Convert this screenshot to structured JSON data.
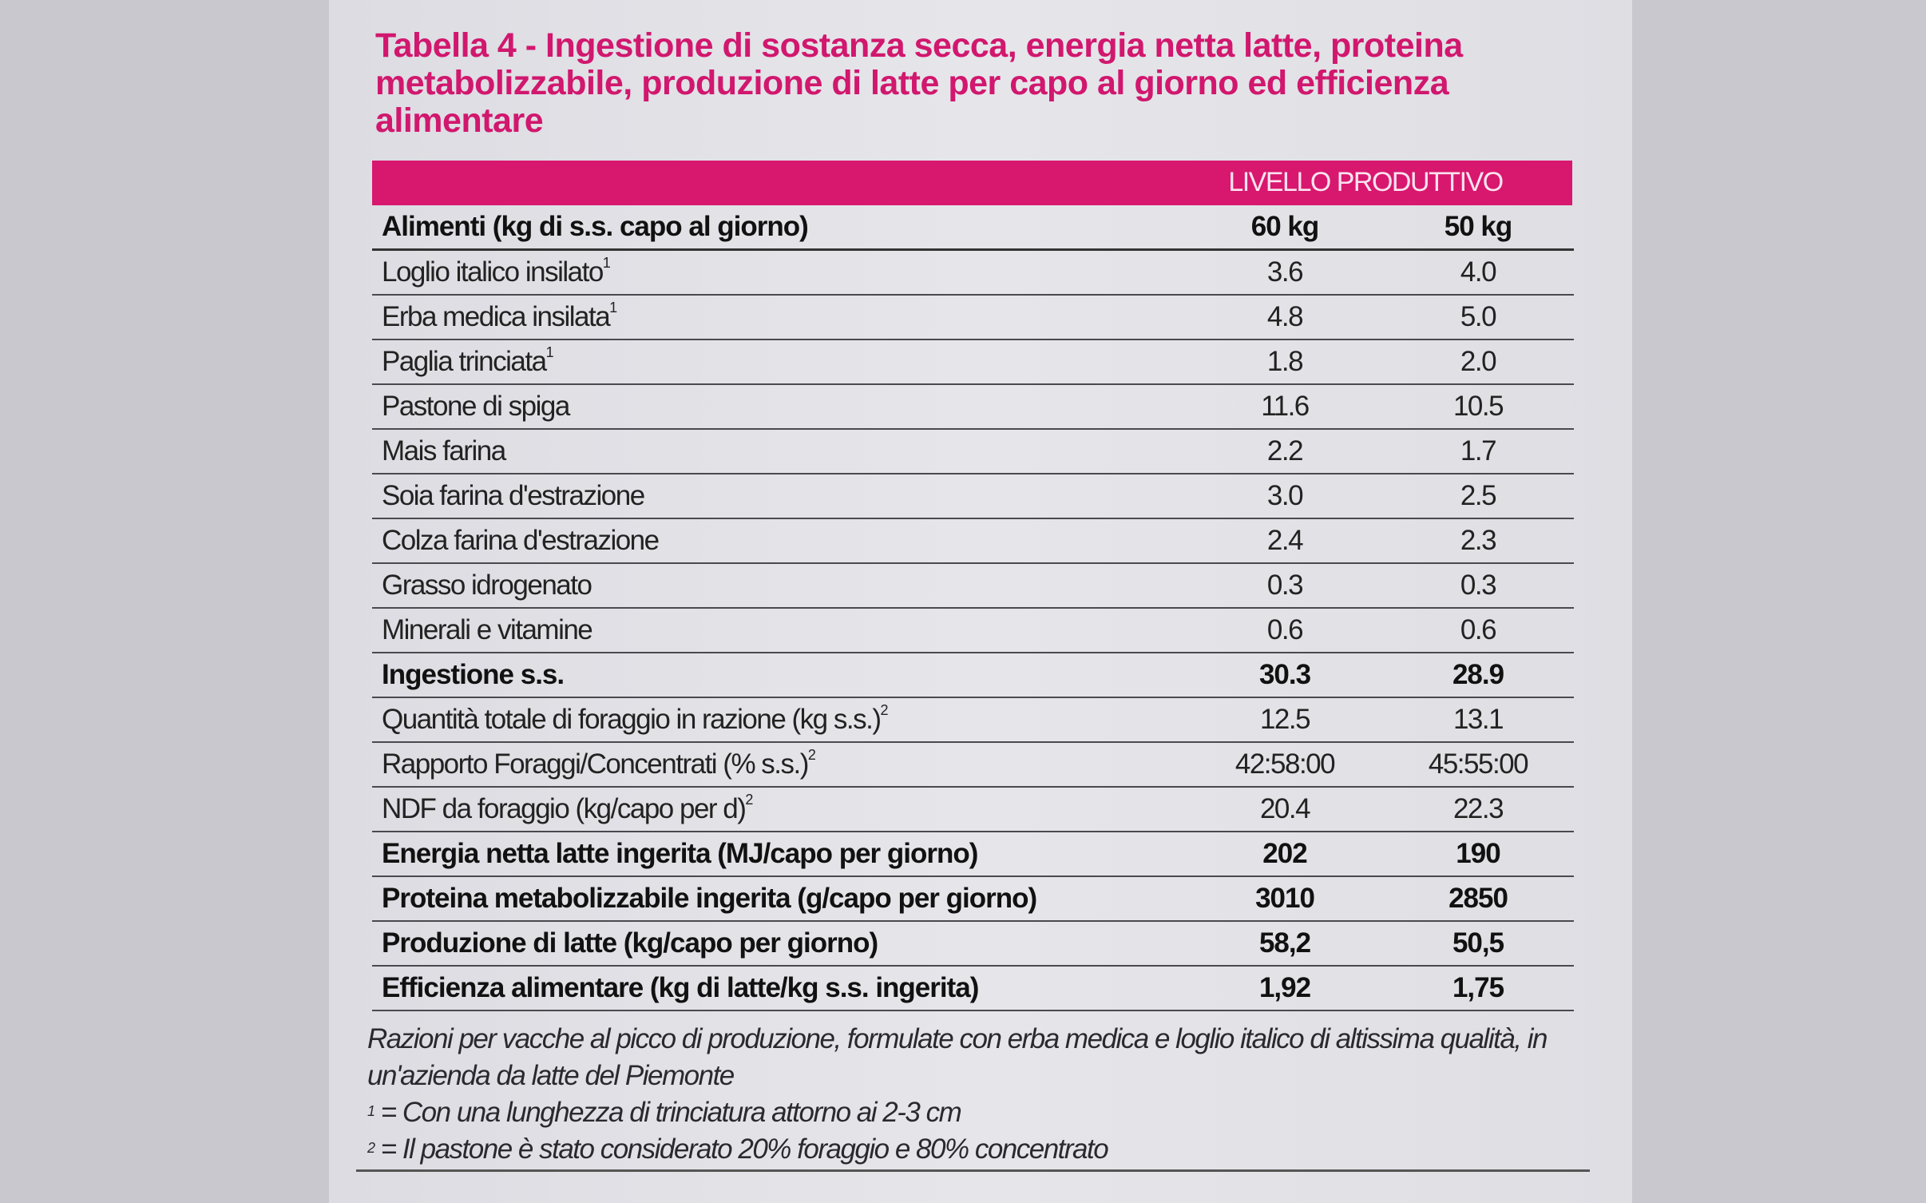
{
  "title": "Tabella 4 -  Ingestione di sostanza secca, energia netta latte, proteina metabolizzabile, produzione di latte per capo al giorno ed efficienza alimentare",
  "header_band": "LIVELLO PRODUTTIVO",
  "columns": {
    "label": "Alimenti (kg di s.s. capo al giorno)",
    "c1": "60 kg",
    "c2": "50 kg"
  },
  "rows": [
    {
      "label": "Loglio italico insilato",
      "sup": "1",
      "c1": "3.6",
      "c2": "4.0",
      "bold": false
    },
    {
      "label": "Erba medica insilata",
      "sup": "1",
      "c1": "4.8",
      "c2": "5.0",
      "bold": false
    },
    {
      "label": "Paglia trinciata",
      "sup": "1",
      "c1": "1.8",
      "c2": "2.0",
      "bold": false
    },
    {
      "label": "Pastone di spiga",
      "c1": "11.6",
      "c2": "10.5",
      "bold": false
    },
    {
      "label": "Mais farina",
      "c1": "2.2",
      "c2": "1.7",
      "bold": false
    },
    {
      "label": "Soia farina d'estrazione",
      "c1": "3.0",
      "c2": "2.5",
      "bold": false
    },
    {
      "label": "Colza farina d'estrazione",
      "c1": "2.4",
      "c2": "2.3",
      "bold": false
    },
    {
      "label": "Grasso idrogenato",
      "c1": "0.3",
      "c2": "0.3",
      "bold": false
    },
    {
      "label": "Minerali e vitamine",
      "c1": "0.6",
      "c2": "0.6",
      "bold": false
    },
    {
      "label": "Ingestione s.s.",
      "c1": "30.3",
      "c2": "28.9",
      "bold": true
    },
    {
      "label": "Quantità totale di foraggio in razione (kg s.s.)",
      "sup": "2",
      "c1": "12.5",
      "c2": "13.1",
      "bold": false
    },
    {
      "label": "Rapporto Foraggi/Concentrati (% s.s.)",
      "sup": "2",
      "c1": "42:58:00",
      "c2": "45:55:00",
      "bold": false
    },
    {
      "label": "NDF da foraggio (kg/capo per d)",
      "sup": "2",
      "c1": "20.4",
      "c2": "22.3",
      "bold": false
    },
    {
      "label": "Energia netta latte ingerita (MJ/capo per giorno)",
      "c1": "202",
      "c2": "190",
      "bold": true
    },
    {
      "label": "Proteina metabolizzabile ingerita (g/capo per giorno)",
      "c1": "3010",
      "c2": "2850",
      "bold": true
    },
    {
      "label": "Produzione di latte (kg/capo per giorno)",
      "c1": "58,2",
      "c2": "50,5",
      "bold": true
    },
    {
      "label": "Efficienza alimentare (kg di latte/kg s.s. ingerita)",
      "c1": "1,92",
      "c2": "1,75",
      "bold": true
    }
  ],
  "notes": {
    "main": "Razioni per vacche al picco di produzione, formulate con erba medica e loglio italico di altissima qualità, in un'azienda da latte del Piemonte",
    "fn1_mark": "1",
    "fn1": " = Con una lunghezza di trinciatura attorno ai 2-3 cm",
    "fn2_mark": "2",
    "fn2": " = Il pastone è stato considerato 20% foraggio e 80% concentrato"
  },
  "colors": {
    "accent": "#d8176f"
  }
}
